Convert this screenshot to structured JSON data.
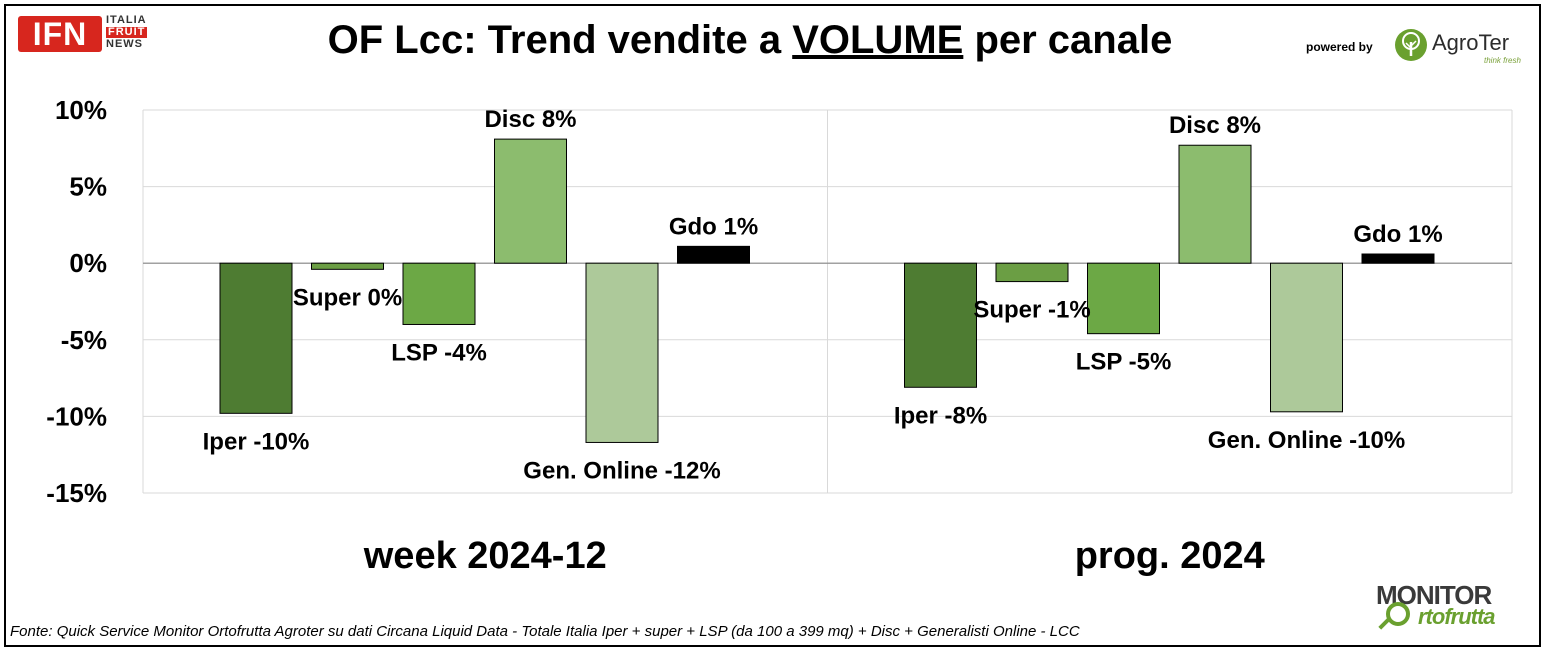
{
  "header": {
    "title_part1": "OF Lcc: Trend vendite a ",
    "title_underlined": "VOLUME",
    "title_part2": " per canale",
    "powered_by": "powered by"
  },
  "logos": {
    "ifn_mark": "IFN",
    "ifn_line1": "ITALIA",
    "ifn_line2": "FRUIT",
    "ifn_line3": "NEWS",
    "agroter_name": "AgroTer",
    "agroter_tagline": "think fresh",
    "monitor_top": "MONITOR",
    "monitor_bottom": "rtofrutta"
  },
  "footer": {
    "source": "Fonte: Quick Service Monitor Ortofrutta Agroter su dati Circana Liquid Data - Totale Italia Iper + super + LSP (da 100 a 399 mq) + Disc + Generalisti Online - LCC"
  },
  "colors": {
    "iper": "#4e7c32",
    "super": "#6b9e44",
    "lsp": "#6ca845",
    "disc": "#8cbc6e",
    "gen_online": "#adc99a",
    "gdo": "#000000",
    "grid": "#d9d9d9"
  },
  "chart_data": {
    "type": "bar",
    "y_ticks": [
      "10%",
      "5%",
      "0%",
      "-5%",
      "-10%",
      "-15%"
    ],
    "ylim": [
      -15,
      10
    ],
    "grid": true,
    "panels": [
      {
        "label": "week 2024-12",
        "bars": [
          {
            "category": "Iper",
            "value": -9.8,
            "label": "Iper -10%"
          },
          {
            "category": "Super",
            "value": -0.4,
            "label": "Super 0%"
          },
          {
            "category": "LSP",
            "value": -4.0,
            "label": "LSP -4%"
          },
          {
            "category": "Disc",
            "value": 8.1,
            "label": "Disc 8%"
          },
          {
            "category": "Gen. Online",
            "value": -11.7,
            "label": "Gen. Online -12%"
          },
          {
            "category": "Gdo",
            "value": 1.1,
            "label": "Gdo 1%"
          }
        ]
      },
      {
        "label": "prog. 2024",
        "bars": [
          {
            "category": "Iper",
            "value": -8.1,
            "label": "Iper -8%"
          },
          {
            "category": "Super",
            "value": -1.2,
            "label": "Super -1%"
          },
          {
            "category": "LSP",
            "value": -4.6,
            "label": "LSP -5%"
          },
          {
            "category": "Disc",
            "value": 7.7,
            "label": "Disc 8%"
          },
          {
            "category": "Gen. Online",
            "value": -9.7,
            "label": "Gen. Online -10%"
          },
          {
            "category": "Gdo",
            "value": 0.6,
            "label": "Gdo 1%"
          }
        ]
      }
    ]
  }
}
